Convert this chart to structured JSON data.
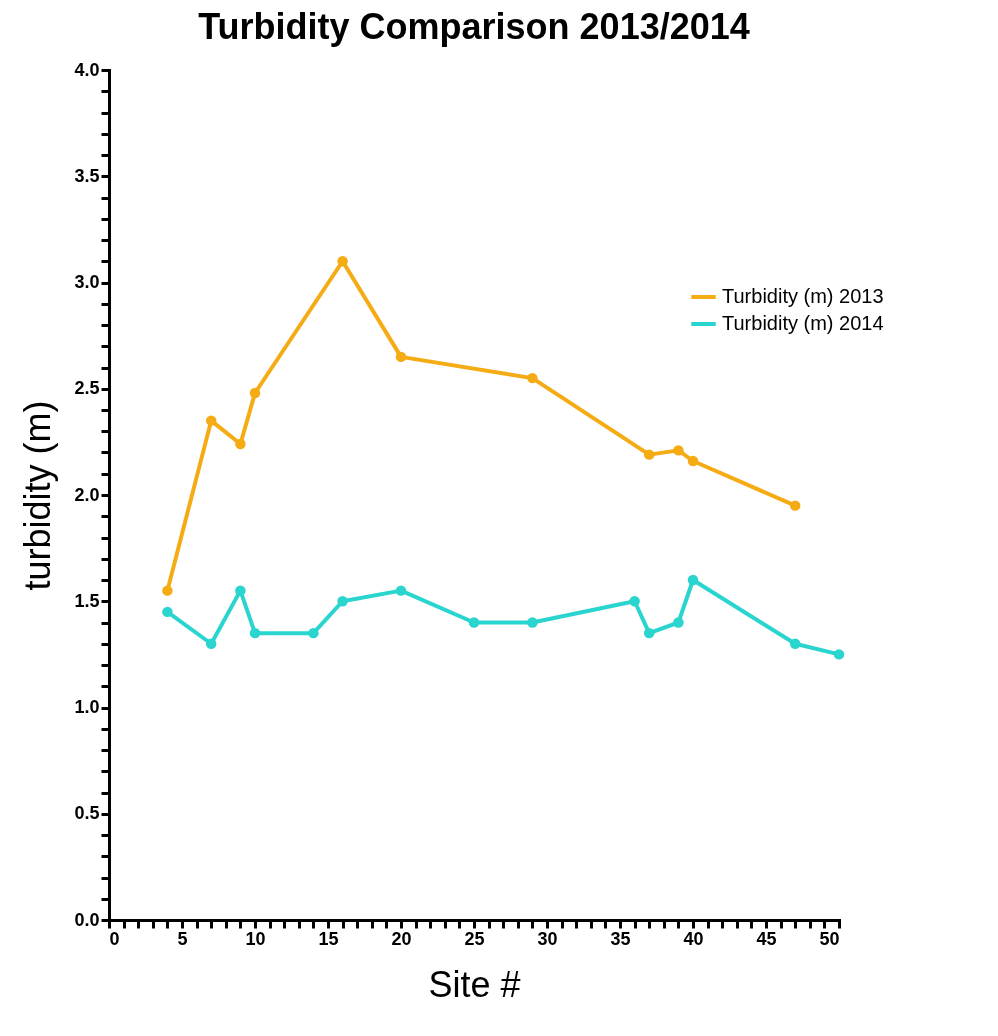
{
  "chart_data": {
    "type": "line",
    "title": "Turbidity Comparison 2013/2014",
    "xlabel": "Site #",
    "ylabel": "turbidity (m)",
    "series": [
      {
        "name": "Turbidity (m) 2013",
        "color": "#f5ab14",
        "x": [
          4,
          7,
          9,
          10,
          16,
          20,
          29,
          37,
          39,
          40,
          47
        ],
        "values": [
          1.55,
          2.35,
          2.24,
          2.48,
          3.1,
          2.65,
          2.55,
          2.19,
          2.21,
          2.16,
          1.95
        ]
      },
      {
        "name": "Turbidity (m) 2014",
        "color": "#2ad4cf",
        "x": [
          4,
          7,
          9,
          10,
          14,
          16,
          20,
          25,
          29,
          36,
          37,
          39,
          40,
          47,
          50
        ],
        "values": [
          1.45,
          1.3,
          1.55,
          1.35,
          1.35,
          1.5,
          1.55,
          1.4,
          1.4,
          1.5,
          1.35,
          1.4,
          1.6,
          1.3,
          1.25
        ]
      }
    ],
    "xlim": [
      0,
      50
    ],
    "ylim": [
      0,
      4
    ],
    "xticks": [
      0,
      {
        "value": 1,
        "label": null
      },
      {
        "value": 2,
        "label": null
      },
      {
        "value": 3,
        "label": null
      },
      {
        "value": 4,
        "label": null
      },
      5,
      {
        "value": 6,
        "label": null
      },
      {
        "value": 7,
        "label": null
      },
      {
        "value": 8,
        "label": null
      },
      {
        "value": 9,
        "label": null
      },
      10,
      {
        "value": 11,
        "label": null
      },
      {
        "value": 12,
        "label": null
      },
      {
        "value": 13,
        "label": null
      },
      {
        "value": 14,
        "label": null
      },
      15,
      {
        "value": 16,
        "label": null
      },
      {
        "value": 17,
        "label": null
      },
      {
        "value": 18,
        "label": null
      },
      {
        "value": 19,
        "label": null
      },
      20,
      {
        "value": 21,
        "label": null
      },
      {
        "value": 22,
        "label": null
      },
      {
        "value": 23,
        "label": null
      },
      {
        "value": 24,
        "label": null
      },
      25,
      {
        "value": 26,
        "label": null
      },
      {
        "value": 27,
        "label": null
      },
      {
        "value": 28,
        "label": null
      },
      {
        "value": 29,
        "label": null
      },
      30,
      {
        "value": 31,
        "label": null
      },
      {
        "value": 32,
        "label": null
      },
      {
        "value": 33,
        "label": null
      },
      {
        "value": 34,
        "label": null
      },
      35,
      {
        "value": 36,
        "label": null
      },
      {
        "value": 37,
        "label": null
      },
      {
        "value": 38,
        "label": null
      },
      {
        "value": 39,
        "label": null
      },
      40,
      {
        "value": 41,
        "label": null
      },
      {
        "value": 42,
        "label": null
      },
      {
        "value": 43,
        "label": null
      },
      {
        "value": 44,
        "label": null
      },
      45,
      {
        "value": 46,
        "label": null
      },
      {
        "value": 47,
        "label": null
      },
      {
        "value": 48,
        "label": null
      },
      {
        "value": 49,
        "label": null
      },
      50
    ],
    "yticks": [
      {
        "value": 0,
        "label": "0.0"
      },
      {
        "value": 0.1,
        "label": null
      },
      {
        "value": 0.2,
        "label": null
      },
      {
        "value": 0.3,
        "label": null
      },
      {
        "value": 0.4,
        "label": null
      },
      {
        "value": 0.5,
        "label": "0.5"
      },
      {
        "value": 0.6,
        "label": null
      },
      {
        "value": 0.7,
        "label": null
      },
      {
        "value": 0.8,
        "label": null
      },
      {
        "value": 0.9,
        "label": null
      },
      {
        "value": 1,
        "label": "1.0"
      },
      {
        "value": 1.1,
        "label": null
      },
      {
        "value": 1.2,
        "label": null
      },
      {
        "value": 1.3,
        "label": null
      },
      {
        "value": 1.4,
        "label": null
      },
      {
        "value": 1.5,
        "label": "1.5"
      },
      {
        "value": 1.6,
        "label": null
      },
      {
        "value": 1.7,
        "label": null
      },
      {
        "value": 1.8,
        "label": null
      },
      {
        "value": 1.9,
        "label": null
      },
      {
        "value": 2,
        "label": "2.0"
      },
      {
        "value": 2.1,
        "label": null
      },
      {
        "value": 2.2,
        "label": null
      },
      {
        "value": 2.3,
        "label": null
      },
      {
        "value": 2.4,
        "label": null
      },
      {
        "value": 2.5,
        "label": "2.5"
      },
      {
        "value": 2.6,
        "label": null
      },
      {
        "value": 2.7,
        "label": null
      },
      {
        "value": 2.8,
        "label": null
      },
      {
        "value": 2.9,
        "label": null
      },
      {
        "value": 3,
        "label": "3.0"
      },
      {
        "value": 3.1,
        "label": null
      },
      {
        "value": 3.2,
        "label": null
      },
      {
        "value": 3.3,
        "label": null
      },
      {
        "value": 3.4,
        "label": null
      },
      {
        "value": 3.5,
        "label": "3.5"
      },
      {
        "value": 3.6,
        "label": null
      },
      {
        "value": 3.7,
        "label": null
      },
      {
        "value": 3.8,
        "label": null
      },
      {
        "value": 3.9,
        "label": null
      },
      {
        "value": 4,
        "label": "4.0"
      }
    ],
    "grid": false,
    "legend": "right",
    "marker": "circle",
    "line_style": "solid"
  }
}
